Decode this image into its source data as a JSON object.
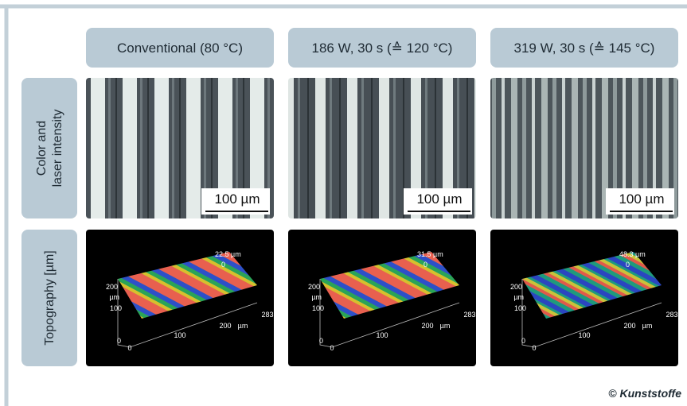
{
  "columns": [
    "Conventional (80 °C)",
    "186 W, 30 s (≙ 120 °C)",
    "319 W, 30 s (≙ 145 °C)"
  ],
  "rows": [
    [
      "Color and",
      "laser intensity"
    ],
    [
      "Topography  [µm]"
    ]
  ],
  "panels": [
    {
      "scale_bar": "100 µm",
      "topography": {
        "z_max": "22.5 µm",
        "z_zero": "0",
        "y_labels": [
          "200",
          "µm",
          "100",
          "0"
        ],
        "x_labels": [
          "0",
          "100",
          "200",
          "µm",
          "283"
        ]
      }
    },
    {
      "scale_bar": "100 µm",
      "topography": {
        "z_max": "31.5 µm",
        "z_zero": "0",
        "y_labels": [
          "200",
          "µm",
          "100",
          "0"
        ],
        "x_labels": [
          "0",
          "100",
          "200",
          "µm",
          "283"
        ]
      }
    },
    {
      "scale_bar": "100 µm",
      "topography": {
        "z_max": "48.3 µm",
        "z_zero": "0",
        "y_labels": [
          "200",
          "µm",
          "100",
          "0"
        ],
        "x_labels": [
          "0",
          "100",
          "200",
          "µm",
          "283"
        ]
      }
    }
  ],
  "credit": "© Kunststoffe"
}
